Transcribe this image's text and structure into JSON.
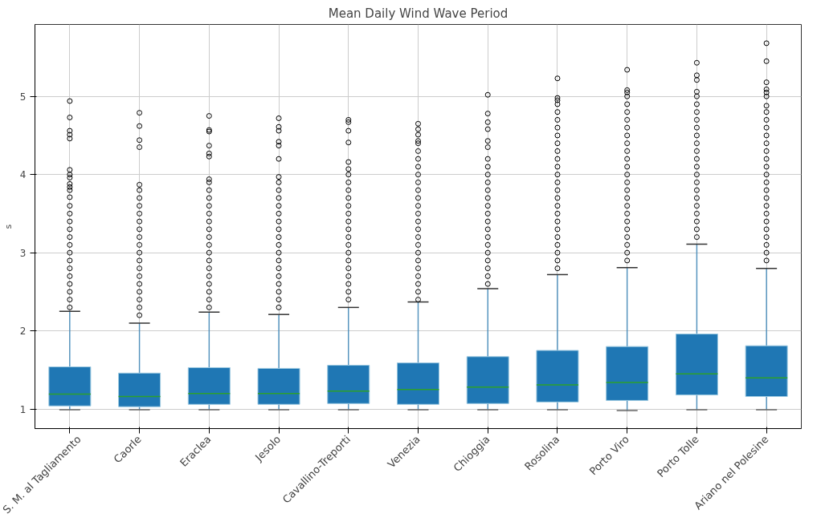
{
  "chart_data": {
    "type": "box",
    "title": "Mean Daily Wind Wave Period",
    "ylabel": "s",
    "categories": [
      "S. M. al Tagliamento",
      "Caorle",
      "Eraclea",
      "Jesolo",
      "Cavallino-Treporti",
      "Venezia",
      "Chioggia",
      "Rosolina",
      "Porto Viro",
      "Porto Tolle",
      "Ariano nel Polesine"
    ],
    "series": [
      {
        "color": "#1f77b4",
        "boxes": [
          {
            "low": 0.99,
            "q1": 1.04,
            "median": 1.19,
            "q3": 1.54,
            "high": 2.25,
            "outliers": [
              4.94,
              4.73,
              4.56,
              4.51,
              4.46,
              4.06,
              4.0,
              3.96,
              3.88,
              3.84,
              3.8,
              3.71,
              3.6,
              3.5,
              3.4,
              3.3,
              3.2,
              3.1,
              3.0,
              2.9,
              2.8,
              2.7,
              2.6,
              2.5,
              2.4,
              2.3
            ]
          },
          {
            "low": 0.99,
            "q1": 1.03,
            "median": 1.16,
            "q3": 1.46,
            "high": 2.1,
            "outliers": [
              4.79,
              4.62,
              4.44,
              4.35,
              3.87,
              3.8,
              3.7,
              3.6,
              3.5,
              3.4,
              3.3,
              3.2,
              3.1,
              3.0,
              2.9,
              2.8,
              2.7,
              2.6,
              2.5,
              2.4,
              2.3,
              2.2
            ]
          },
          {
            "low": 0.99,
            "q1": 1.06,
            "median": 1.2,
            "q3": 1.53,
            "high": 2.24,
            "outliers": [
              4.75,
              4.57,
              4.55,
              4.37,
              4.27,
              4.23,
              3.94,
              3.9,
              3.8,
              3.7,
              3.6,
              3.5,
              3.4,
              3.3,
              3.2,
              3.1,
              3.0,
              2.9,
              2.8,
              2.7,
              2.6,
              2.5,
              2.4,
              2.3
            ]
          },
          {
            "low": 0.99,
            "q1": 1.06,
            "median": 1.2,
            "q3": 1.52,
            "high": 2.21,
            "outliers": [
              4.72,
              4.61,
              4.56,
              4.42,
              4.37,
              4.2,
              3.97,
              3.9,
              3.8,
              3.7,
              3.6,
              3.5,
              3.4,
              3.3,
              3.2,
              3.1,
              3.0,
              2.9,
              2.8,
              2.7,
              2.6,
              2.5,
              2.4,
              2.3
            ]
          },
          {
            "low": 0.99,
            "q1": 1.07,
            "median": 1.23,
            "q3": 1.56,
            "high": 2.3,
            "outliers": [
              4.7,
              4.67,
              4.56,
              4.41,
              4.16,
              4.07,
              4.0,
              3.9,
              3.8,
              3.7,
              3.6,
              3.5,
              3.4,
              3.3,
              3.2,
              3.1,
              3.0,
              2.9,
              2.8,
              2.7,
              2.6,
              2.5,
              2.4
            ]
          },
          {
            "low": 0.99,
            "q1": 1.06,
            "median": 1.25,
            "q3": 1.59,
            "high": 2.37,
            "outliers": [
              4.65,
              4.58,
              4.51,
              4.43,
              4.4,
              4.3,
              4.2,
              4.1,
              4.0,
              3.9,
              3.8,
              3.7,
              3.6,
              3.5,
              3.4,
              3.3,
              3.2,
              3.1,
              3.0,
              2.9,
              2.8,
              2.7,
              2.6,
              2.5,
              2.4
            ]
          },
          {
            "low": 0.99,
            "q1": 1.07,
            "median": 1.28,
            "q3": 1.67,
            "high": 2.54,
            "outliers": [
              5.02,
              4.78,
              4.67,
              4.58,
              4.43,
              4.35,
              4.2,
              4.1,
              4.0,
              3.9,
              3.8,
              3.7,
              3.6,
              3.5,
              3.4,
              3.3,
              3.2,
              3.1,
              3.0,
              2.9,
              2.8,
              2.7,
              2.6
            ]
          },
          {
            "low": 0.99,
            "q1": 1.09,
            "median": 1.31,
            "q3": 1.75,
            "high": 2.72,
            "outliers": [
              5.23,
              4.98,
              4.95,
              4.9,
              4.8,
              4.7,
              4.6,
              4.5,
              4.4,
              4.3,
              4.2,
              4.1,
              4.0,
              3.9,
              3.8,
              3.7,
              3.6,
              3.5,
              3.4,
              3.3,
              3.2,
              3.1,
              3.0,
              2.9,
              2.8
            ]
          },
          {
            "low": 0.98,
            "q1": 1.11,
            "median": 1.34,
            "q3": 1.8,
            "high": 2.81,
            "outliers": [
              5.34,
              5.08,
              5.05,
              5.0,
              4.9,
              4.8,
              4.7,
              4.6,
              4.5,
              4.4,
              4.3,
              4.2,
              4.1,
              4.0,
              3.9,
              3.8,
              3.7,
              3.6,
              3.5,
              3.4,
              3.3,
              3.2,
              3.1,
              3.0,
              2.9
            ]
          },
          {
            "low": 0.99,
            "q1": 1.18,
            "median": 1.45,
            "q3": 1.96,
            "high": 3.11,
            "outliers": [
              5.43,
              5.27,
              5.21,
              5.06,
              5.0,
              4.9,
              4.8,
              4.7,
              4.6,
              4.5,
              4.4,
              4.3,
              4.2,
              4.1,
              4.0,
              3.9,
              3.8,
              3.7,
              3.6,
              3.5,
              3.4,
              3.3,
              3.2
            ]
          },
          {
            "low": 0.99,
            "q1": 1.16,
            "median": 1.4,
            "q3": 1.81,
            "high": 2.8,
            "outliers": [
              5.68,
              5.45,
              5.18,
              5.09,
              5.05,
              5.0,
              4.88,
              4.8,
              4.7,
              4.6,
              4.5,
              4.4,
              4.3,
              4.2,
              4.1,
              4.0,
              3.9,
              3.8,
              3.7,
              3.6,
              3.5,
              3.4,
              3.3,
              3.2,
              3.1,
              3.0,
              2.9
            ]
          }
        ]
      }
    ],
    "ylim": [
      0.75,
      5.92
    ],
    "yticks": [
      1,
      2,
      3,
      4,
      5
    ],
    "grid": true,
    "marker": "circle"
  }
}
